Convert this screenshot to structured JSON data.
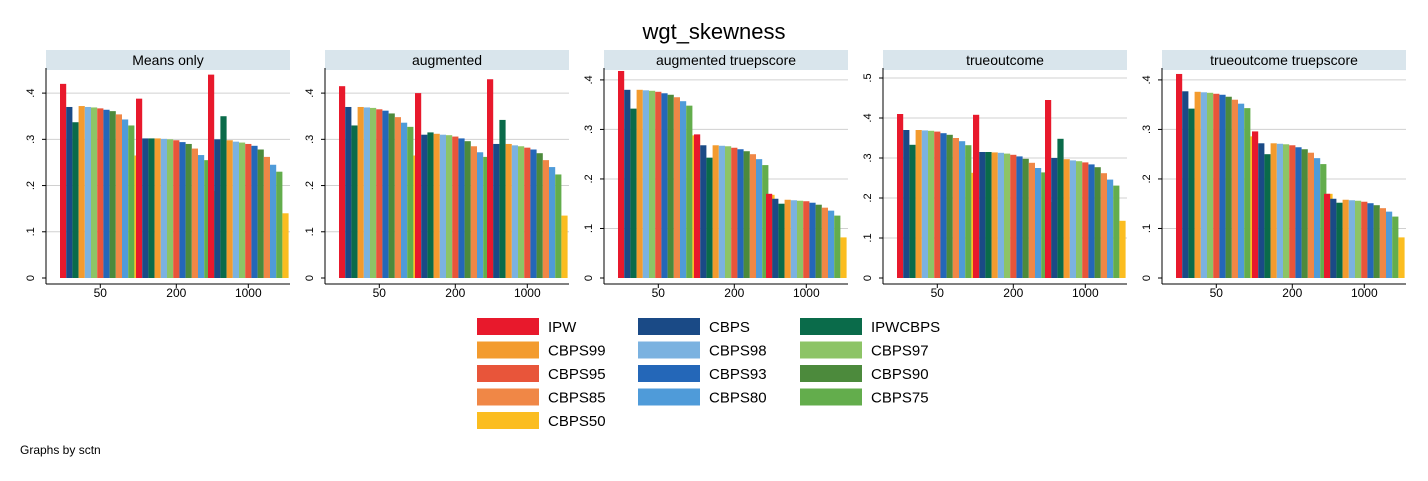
{
  "figure": {
    "title": "wgt_skewness",
    "note": "Graphs by sctn"
  },
  "colors": {
    "IPW": "#e8192c",
    "CBPS": "#1a4a86",
    "IPWCBPS": "#0a6b4a",
    "CBPS99": "#f39b2e",
    "CBPS98": "#7bb2e0",
    "CBPS97": "#8dc466",
    "CBPS95": "#e8553a",
    "CBPS93": "#2467b8",
    "CBPS90": "#4c8a3c",
    "CBPS85": "#f08746",
    "CBPS80": "#4f9bd9",
    "CBPS75": "#63ad4c",
    "CBPS50": "#fbbd20",
    "panel_header_bg": "#d9e5ec",
    "grid": "#d0d0d0",
    "axis": "#000000"
  },
  "legend": {
    "position": "bottom",
    "columns": [
      [
        "IPW",
        "CBPS99",
        "CBPS95",
        "CBPS85",
        "CBPS50"
      ],
      [
        "CBPS",
        "CBPS98",
        "CBPS93",
        "CBPS80"
      ],
      [
        "IPWCBPS",
        "CBPS97",
        "CBPS90",
        "CBPS75"
      ]
    ]
  },
  "chart_data": [
    {
      "type": "bar",
      "title": "Means only",
      "categories": [
        "50",
        "200",
        "1000"
      ],
      "ylim": [
        0,
        0.45
      ],
      "yticks": [
        0,
        0.1,
        0.2,
        0.3,
        0.4
      ],
      "ytick_labels": [
        "0",
        ".1",
        ".2",
        ".3",
        ".4"
      ],
      "grid": true,
      "series": [
        {
          "name": "IPW",
          "values": [
            0.42,
            0.388,
            0.44
          ]
        },
        {
          "name": "CBPS",
          "values": [
            0.37,
            0.302,
            0.3
          ]
        },
        {
          "name": "IPWCBPS",
          "values": [
            0.337,
            0.302,
            0.35
          ]
        },
        {
          "name": "CBPS99",
          "values": [
            0.372,
            0.302,
            0.298
          ]
        },
        {
          "name": "CBPS98",
          "values": [
            0.37,
            0.301,
            0.295
          ]
        },
        {
          "name": "CBPS97",
          "values": [
            0.369,
            0.3,
            0.293
          ]
        },
        {
          "name": "CBPS95",
          "values": [
            0.367,
            0.298,
            0.29
          ]
        },
        {
          "name": "CBPS93",
          "values": [
            0.364,
            0.294,
            0.286
          ]
        },
        {
          "name": "CBPS90",
          "values": [
            0.361,
            0.29,
            0.278
          ]
        },
        {
          "name": "CBPS85",
          "values": [
            0.354,
            0.28,
            0.262
          ]
        },
        {
          "name": "CBPS80",
          "values": [
            0.343,
            0.266,
            0.245
          ]
        },
        {
          "name": "CBPS75",
          "values": [
            0.33,
            0.255,
            0.23
          ]
        },
        {
          "name": "CBPS50",
          "values": [
            0.265,
            0.188,
            0.14
          ]
        }
      ]
    },
    {
      "type": "bar",
      "title": "augmented",
      "categories": [
        "50",
        "200",
        "1000"
      ],
      "ylim": [
        0,
        0.45
      ],
      "yticks": [
        0,
        0.1,
        0.2,
        0.3,
        0.4
      ],
      "ytick_labels": [
        "0",
        ".1",
        ".2",
        ".3",
        ".4"
      ],
      "grid": true,
      "series": [
        {
          "name": "IPW",
          "values": [
            0.415,
            0.4,
            0.43
          ]
        },
        {
          "name": "CBPS",
          "values": [
            0.37,
            0.31,
            0.29
          ]
        },
        {
          "name": "IPWCBPS",
          "values": [
            0.33,
            0.315,
            0.342
          ]
        },
        {
          "name": "CBPS99",
          "values": [
            0.37,
            0.312,
            0.29
          ]
        },
        {
          "name": "CBPS98",
          "values": [
            0.369,
            0.31,
            0.287
          ]
        },
        {
          "name": "CBPS97",
          "values": [
            0.368,
            0.309,
            0.285
          ]
        },
        {
          "name": "CBPS95",
          "values": [
            0.365,
            0.306,
            0.282
          ]
        },
        {
          "name": "CBPS93",
          "values": [
            0.362,
            0.302,
            0.278
          ]
        },
        {
          "name": "CBPS90",
          "values": [
            0.356,
            0.296,
            0.27
          ]
        },
        {
          "name": "CBPS85",
          "values": [
            0.348,
            0.285,
            0.255
          ]
        },
        {
          "name": "CBPS80",
          "values": [
            0.336,
            0.272,
            0.24
          ]
        },
        {
          "name": "CBPS75",
          "values": [
            0.327,
            0.262,
            0.224
          ]
        },
        {
          "name": "CBPS50",
          "values": [
            0.265,
            0.19,
            0.135
          ]
        }
      ]
    },
    {
      "type": "bar",
      "title": "augmented truepscore",
      "categories": [
        "50",
        "200",
        "1000"
      ],
      "ylim": [
        0,
        0.42
      ],
      "yticks": [
        0,
        0.1,
        0.2,
        0.3,
        0.4
      ],
      "ytick_labels": [
        "0",
        ".1",
        ".2",
        ".3",
        ".4"
      ],
      "grid": true,
      "series": [
        {
          "name": "IPW",
          "values": [
            0.418,
            0.29,
            0.17
          ]
        },
        {
          "name": "CBPS",
          "values": [
            0.38,
            0.268,
            0.16
          ]
        },
        {
          "name": "IPWCBPS",
          "values": [
            0.342,
            0.243,
            0.15
          ]
        },
        {
          "name": "CBPS99",
          "values": [
            0.38,
            0.268,
            0.158
          ]
        },
        {
          "name": "CBPS98",
          "values": [
            0.379,
            0.267,
            0.157
          ]
        },
        {
          "name": "CBPS97",
          "values": [
            0.378,
            0.266,
            0.156
          ]
        },
        {
          "name": "CBPS95",
          "values": [
            0.376,
            0.263,
            0.155
          ]
        },
        {
          "name": "CBPS93",
          "values": [
            0.373,
            0.26,
            0.152
          ]
        },
        {
          "name": "CBPS90",
          "values": [
            0.37,
            0.256,
            0.148
          ]
        },
        {
          "name": "CBPS85",
          "values": [
            0.365,
            0.25,
            0.142
          ]
        },
        {
          "name": "CBPS80",
          "values": [
            0.357,
            0.24,
            0.136
          ]
        },
        {
          "name": "CBPS75",
          "values": [
            0.348,
            0.228,
            0.126
          ]
        },
        {
          "name": "CBPS50",
          "values": [
            0.288,
            0.168,
            0.082
          ]
        }
      ]
    },
    {
      "type": "bar",
      "title": "trueoutcome",
      "categories": [
        "50",
        "200",
        "1000"
      ],
      "ylim": [
        0,
        0.52
      ],
      "yticks": [
        0,
        0.1,
        0.2,
        0.3,
        0.4,
        0.5
      ],
      "ytick_labels": [
        "0",
        ".1",
        ".2",
        ".3",
        ".4",
        ".5"
      ],
      "grid": true,
      "series": [
        {
          "name": "IPW",
          "values": [
            0.41,
            0.408,
            0.445
          ]
        },
        {
          "name": "CBPS",
          "values": [
            0.37,
            0.315,
            0.3
          ]
        },
        {
          "name": "IPWCBPS",
          "values": [
            0.333,
            0.315,
            0.348
          ]
        },
        {
          "name": "CBPS99",
          "values": [
            0.37,
            0.314,
            0.297
          ]
        },
        {
          "name": "CBPS98",
          "values": [
            0.369,
            0.313,
            0.294
          ]
        },
        {
          "name": "CBPS97",
          "values": [
            0.368,
            0.311,
            0.292
          ]
        },
        {
          "name": "CBPS95",
          "values": [
            0.366,
            0.308,
            0.289
          ]
        },
        {
          "name": "CBPS93",
          "values": [
            0.362,
            0.304,
            0.284
          ]
        },
        {
          "name": "CBPS90",
          "values": [
            0.358,
            0.298,
            0.277
          ]
        },
        {
          "name": "CBPS85",
          "values": [
            0.35,
            0.288,
            0.262
          ]
        },
        {
          "name": "CBPS80",
          "values": [
            0.342,
            0.275,
            0.246
          ]
        },
        {
          "name": "CBPS75",
          "values": [
            0.332,
            0.264,
            0.231
          ]
        },
        {
          "name": "CBPS50",
          "values": [
            0.263,
            0.19,
            0.143
          ]
        }
      ]
    },
    {
      "type": "bar",
      "title": "trueoutcome truepscore",
      "categories": [
        "50",
        "200",
        "1000"
      ],
      "ylim": [
        0,
        0.42
      ],
      "yticks": [
        0,
        0.1,
        0.2,
        0.3,
        0.4
      ],
      "ytick_labels": [
        "0",
        ".1",
        ".2",
        ".3",
        ".4"
      ],
      "grid": true,
      "series": [
        {
          "name": "IPW",
          "values": [
            0.412,
            0.296,
            0.17
          ]
        },
        {
          "name": "CBPS",
          "values": [
            0.377,
            0.272,
            0.16
          ]
        },
        {
          "name": "IPWCBPS",
          "values": [
            0.342,
            0.25,
            0.152
          ]
        },
        {
          "name": "CBPS99",
          "values": [
            0.376,
            0.272,
            0.158
          ]
        },
        {
          "name": "CBPS98",
          "values": [
            0.375,
            0.271,
            0.157
          ]
        },
        {
          "name": "CBPS97",
          "values": [
            0.374,
            0.27,
            0.156
          ]
        },
        {
          "name": "CBPS95",
          "values": [
            0.372,
            0.268,
            0.154
          ]
        },
        {
          "name": "CBPS93",
          "values": [
            0.37,
            0.264,
            0.151
          ]
        },
        {
          "name": "CBPS90",
          "values": [
            0.366,
            0.26,
            0.147
          ]
        },
        {
          "name": "CBPS85",
          "values": [
            0.36,
            0.253,
            0.141
          ]
        },
        {
          "name": "CBPS80",
          "values": [
            0.352,
            0.242,
            0.134
          ]
        },
        {
          "name": "CBPS75",
          "values": [
            0.343,
            0.23,
            0.124
          ]
        },
        {
          "name": "CBPS50",
          "values": [
            0.286,
            0.17,
            0.082
          ]
        }
      ]
    }
  ]
}
